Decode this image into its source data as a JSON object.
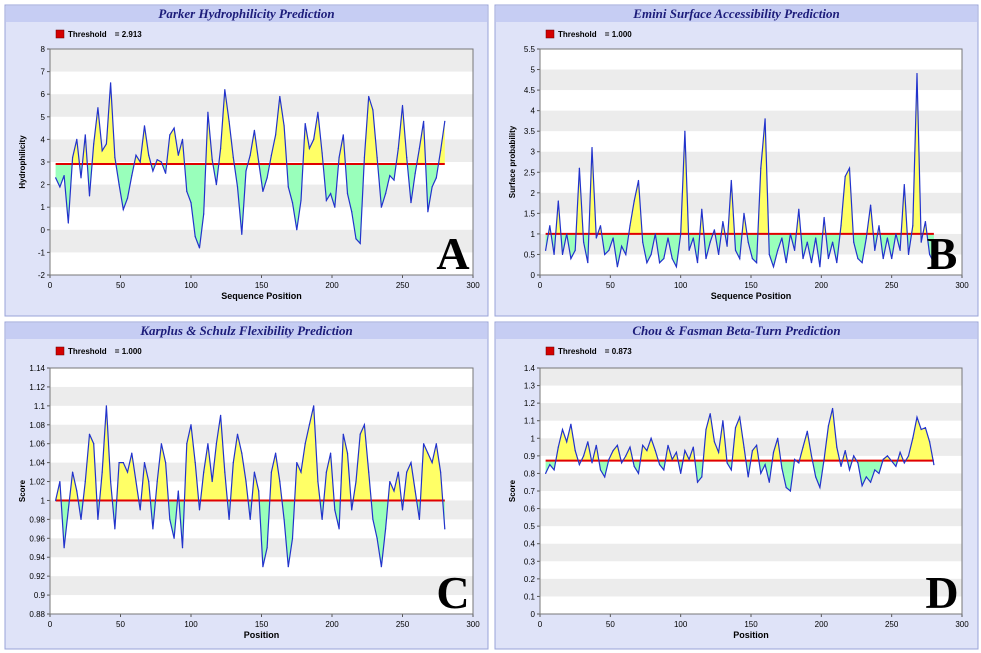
{
  "chart_data": [
    {
      "type": "area",
      "title": "Parker Hydrophilicity Prediction",
      "legend_label": "Threshold",
      "threshold_label": "= 2.913",
      "threshold": 2.913,
      "xlabel": "Sequence Position",
      "ylabel": "Hydrophilicity",
      "xlim": [
        0,
        300
      ],
      "ylim": [
        -2,
        8
      ],
      "xticks": [
        0,
        50,
        100,
        150,
        200,
        250,
        300
      ],
      "yticks": [
        -2,
        -1,
        0,
        1,
        2,
        3,
        4,
        5,
        6,
        7,
        8
      ],
      "panel_letter": "A",
      "series": [
        {
          "x": [
            4,
            7,
            10,
            13,
            16,
            19,
            22,
            25,
            28,
            31,
            34,
            37,
            40,
            43,
            46,
            49,
            52,
            55,
            58,
            61,
            64,
            67,
            70,
            73,
            76,
            79,
            82,
            85,
            88,
            91,
            94,
            97,
            100,
            103,
            106,
            109,
            112,
            115,
            118,
            121,
            124,
            127,
            130,
            133,
            136,
            139,
            142,
            145,
            148,
            151,
            154,
            157,
            160,
            163,
            166,
            169,
            172,
            175,
            178,
            181,
            184,
            187,
            190,
            193,
            196,
            199,
            202,
            205,
            208,
            211,
            214,
            217,
            220,
            223,
            226,
            229,
            232,
            235,
            238,
            241,
            244,
            247,
            250,
            253,
            256,
            259,
            262,
            265,
            268,
            271,
            274,
            277,
            280
          ],
          "y": [
            2.3,
            1.9,
            2.4,
            0.3,
            3.2,
            4.0,
            2.3,
            4.2,
            1.5,
            3.8,
            5.4,
            3.5,
            3.8,
            6.5,
            3.2,
            2.0,
            0.9,
            1.4,
            2.4,
            3.3,
            3.0,
            4.6,
            3.3,
            2.6,
            3.1,
            3.0,
            2.5,
            4.2,
            4.5,
            3.3,
            4.0,
            1.7,
            1.2,
            -0.3,
            -0.8,
            0.7,
            5.2,
            3.1,
            2.0,
            3.6,
            6.2,
            4.8,
            3.2,
            1.9,
            -0.2,
            2.6,
            3.3,
            4.4,
            3.0,
            1.7,
            2.3,
            3.3,
            4.2,
            5.9,
            4.6,
            1.9,
            1.2,
            0.0,
            1.3,
            4.7,
            3.6,
            4.0,
            5.2,
            3.4,
            1.3,
            1.6,
            1.0,
            3.2,
            4.2,
            1.6,
            0.8,
            -0.4,
            -0.6,
            3.2,
            5.9,
            5.3,
            3.2,
            1.0,
            1.6,
            2.4,
            2.2,
            3.6,
            5.5,
            3.2,
            1.2,
            2.5,
            3.6,
            4.8,
            0.8,
            1.9,
            2.3,
            3.5,
            4.8
          ]
        }
      ]
    },
    {
      "type": "area",
      "title": "Emini Surface Accessibility Prediction",
      "legend_label": "Threshold",
      "threshold_label": "= 1.000",
      "threshold": 1.0,
      "xlabel": "Sequence Position",
      "ylabel": "Surface probability",
      "xlim": [
        0,
        300
      ],
      "ylim": [
        0,
        5.5
      ],
      "xticks": [
        0,
        50,
        100,
        150,
        200,
        250,
        300
      ],
      "yticks": [
        0,
        0.5,
        1,
        1.5,
        2,
        2.5,
        3,
        3.5,
        4,
        4.5,
        5,
        5.5
      ],
      "panel_letter": "B",
      "series": [
        {
          "x": [
            4,
            7,
            10,
            13,
            16,
            19,
            22,
            25,
            28,
            31,
            34,
            37,
            40,
            43,
            46,
            49,
            52,
            55,
            58,
            61,
            64,
            67,
            70,
            73,
            76,
            79,
            82,
            85,
            88,
            91,
            94,
            97,
            100,
            103,
            106,
            109,
            112,
            115,
            118,
            121,
            124,
            127,
            130,
            133,
            136,
            139,
            142,
            145,
            148,
            151,
            154,
            157,
            160,
            163,
            166,
            169,
            172,
            175,
            178,
            181,
            184,
            187,
            190,
            193,
            196,
            199,
            202,
            205,
            208,
            211,
            214,
            217,
            220,
            223,
            226,
            229,
            232,
            235,
            238,
            241,
            244,
            247,
            250,
            253,
            256,
            259,
            262,
            265,
            268,
            271,
            274,
            277,
            280
          ],
          "y": [
            0.6,
            1.2,
            0.5,
            1.8,
            0.5,
            1.0,
            0.4,
            0.6,
            2.6,
            0.8,
            0.3,
            3.1,
            0.9,
            1.2,
            0.5,
            0.6,
            0.9,
            0.2,
            0.7,
            0.5,
            1.2,
            1.8,
            2.3,
            0.8,
            0.3,
            0.5,
            1.0,
            0.3,
            0.4,
            0.9,
            0.4,
            0.2,
            1.0,
            3.5,
            0.6,
            0.9,
            0.3,
            1.6,
            0.4,
            0.8,
            1.1,
            0.5,
            1.3,
            0.7,
            2.3,
            0.6,
            0.4,
            1.5,
            0.8,
            0.4,
            0.3,
            2.6,
            3.8,
            0.5,
            0.2,
            0.6,
            0.9,
            0.3,
            1.0,
            0.6,
            1.6,
            0.4,
            0.8,
            0.3,
            0.9,
            0.2,
            1.4,
            0.4,
            0.8,
            0.3,
            1.2,
            2.4,
            2.6,
            0.8,
            0.4,
            0.3,
            0.9,
            1.7,
            0.6,
            1.2,
            0.4,
            0.9,
            0.4,
            1.0,
            0.6,
            2.2,
            0.5,
            1.2,
            4.9,
            0.8,
            1.3,
            0.5,
            0.3
          ]
        }
      ]
    },
    {
      "type": "area",
      "title": "Karplus & Schulz Flexibility Prediction",
      "legend_label": "Threshold",
      "threshold_label": "= 1.000",
      "threshold": 1.0,
      "xlabel": "Position",
      "ylabel": "Score",
      "xlim": [
        0,
        300
      ],
      "ylim": [
        0.88,
        1.14
      ],
      "xticks": [
        0,
        50,
        100,
        150,
        200,
        250,
        300
      ],
      "yticks": [
        0.88,
        0.9,
        0.92,
        0.94,
        0.96,
        0.98,
        1,
        1.02,
        1.04,
        1.06,
        1.08,
        1.1,
        1.12,
        1.14
      ],
      "panel_letter": "C",
      "series": [
        {
          "x": [
            4,
            7,
            10,
            13,
            16,
            19,
            22,
            25,
            28,
            31,
            34,
            37,
            40,
            43,
            46,
            49,
            52,
            55,
            58,
            61,
            64,
            67,
            70,
            73,
            76,
            79,
            82,
            85,
            88,
            91,
            94,
            97,
            100,
            103,
            106,
            109,
            112,
            115,
            118,
            121,
            124,
            127,
            130,
            133,
            136,
            139,
            142,
            145,
            148,
            151,
            154,
            157,
            160,
            163,
            166,
            169,
            172,
            175,
            178,
            181,
            184,
            187,
            190,
            193,
            196,
            199,
            202,
            205,
            208,
            211,
            214,
            217,
            220,
            223,
            226,
            229,
            232,
            235,
            238,
            241,
            244,
            247,
            250,
            253,
            256,
            259,
            262,
            265,
            268,
            271,
            274,
            277,
            280
          ],
          "y": [
            1.0,
            1.02,
            0.95,
            0.99,
            1.03,
            1.01,
            0.98,
            1.02,
            1.07,
            1.06,
            0.98,
            1.03,
            1.1,
            1.02,
            0.97,
            1.04,
            1.04,
            1.03,
            1.05,
            1.02,
            0.99,
            1.04,
            1.02,
            0.97,
            1.02,
            1.06,
            1.04,
            0.98,
            0.96,
            1.01,
            0.95,
            1.06,
            1.08,
            1.04,
            0.99,
            1.03,
            1.06,
            1.02,
            1.06,
            1.09,
            1.03,
            0.98,
            1.04,
            1.07,
            1.05,
            1.02,
            0.98,
            1.03,
            1.01,
            0.93,
            0.95,
            1.03,
            1.05,
            1.02,
            0.98,
            0.93,
            0.96,
            1.04,
            1.03,
            1.06,
            1.08,
            1.1,
            1.02,
            0.98,
            1.03,
            1.05,
            0.99,
            0.97,
            1.07,
            1.05,
            0.99,
            1.02,
            1.07,
            1.08,
            1.03,
            0.98,
            0.96,
            0.93,
            0.97,
            1.02,
            1.01,
            1.03,
            0.99,
            1.03,
            1.04,
            1.01,
            0.98,
            1.06,
            1.05,
            1.04,
            1.06,
            1.03,
            0.97
          ]
        }
      ]
    },
    {
      "type": "area",
      "title": "Chou & Fasman Beta-Turn Prediction",
      "legend_label": "Threshold",
      "threshold_label": "= 0.873",
      "threshold": 0.873,
      "xlabel": "Position",
      "ylabel": "Score",
      "xlim": [
        0,
        300
      ],
      "ylim": [
        0,
        1.4
      ],
      "xticks": [
        0,
        50,
        100,
        150,
        200,
        250,
        300
      ],
      "yticks": [
        0,
        0.1,
        0.2,
        0.3,
        0.4,
        0.5,
        0.6,
        0.7,
        0.8,
        0.9,
        1,
        1.1,
        1.2,
        1.3,
        1.4
      ],
      "panel_letter": "D",
      "series": [
        {
          "x": [
            4,
            7,
            10,
            13,
            16,
            19,
            22,
            25,
            28,
            31,
            34,
            37,
            40,
            43,
            46,
            49,
            52,
            55,
            58,
            61,
            64,
            67,
            70,
            73,
            76,
            79,
            82,
            85,
            88,
            91,
            94,
            97,
            100,
            103,
            106,
            109,
            112,
            115,
            118,
            121,
            124,
            127,
            130,
            133,
            136,
            139,
            142,
            145,
            148,
            151,
            154,
            157,
            160,
            163,
            166,
            169,
            172,
            175,
            178,
            181,
            184,
            187,
            190,
            193,
            196,
            199,
            202,
            205,
            208,
            211,
            214,
            217,
            220,
            223,
            226,
            229,
            232,
            235,
            238,
            241,
            244,
            247,
            250,
            253,
            256,
            259,
            262,
            265,
            268,
            271,
            274,
            277,
            280
          ],
          "y": [
            0.8,
            0.85,
            0.82,
            0.95,
            1.05,
            0.98,
            1.08,
            0.93,
            0.85,
            0.9,
            0.98,
            0.86,
            0.96,
            0.82,
            0.78,
            0.88,
            0.93,
            0.96,
            0.86,
            0.9,
            0.95,
            0.84,
            0.8,
            0.96,
            0.93,
            1.0,
            0.93,
            0.85,
            0.82,
            0.96,
            0.88,
            0.92,
            0.8,
            0.93,
            0.88,
            0.95,
            0.75,
            0.78,
            1.05,
            1.14,
            0.98,
            0.92,
            1.1,
            0.86,
            0.82,
            1.06,
            1.12,
            0.95,
            0.78,
            0.93,
            0.96,
            0.8,
            0.85,
            0.75,
            0.92,
            1.0,
            0.83,
            0.72,
            0.7,
            0.88,
            0.86,
            0.95,
            1.04,
            0.9,
            0.78,
            0.72,
            0.88,
            1.07,
            1.17,
            0.95,
            0.84,
            0.93,
            0.82,
            0.9,
            0.86,
            0.73,
            0.78,
            0.75,
            0.82,
            0.8,
            0.88,
            0.9,
            0.87,
            0.84,
            0.92,
            0.86,
            0.9,
            1.0,
            1.12,
            1.05,
            1.06,
            0.98,
            0.85
          ]
        }
      ]
    }
  ]
}
